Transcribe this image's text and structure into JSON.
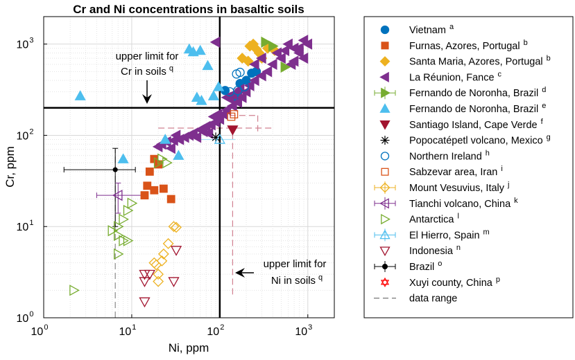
{
  "chart_data": {
    "type": "scatter",
    "title": "Cr and Ni concentrations in basaltic soils",
    "xlabel": "Ni, ppm",
    "ylabel": "Cr, ppm",
    "xscale": "log",
    "yscale": "log",
    "xlim": [
      1,
      2000
    ],
    "ylim": [
      1,
      2000
    ],
    "grid": true,
    "xticks": [
      {
        "value": 1,
        "base": "10",
        "exp": "0"
      },
      {
        "value": 10,
        "base": "10",
        "exp": "1"
      },
      {
        "value": 100,
        "base": "10",
        "exp": "2"
      },
      {
        "value": 1000,
        "base": "10",
        "exp": "3"
      }
    ],
    "yticks": [
      {
        "value": 1,
        "base": "10",
        "exp": "0"
      },
      {
        "value": 10,
        "base": "10",
        "exp": "1"
      },
      {
        "value": 100,
        "base": "10",
        "exp": "2"
      },
      {
        "value": 1000,
        "base": "10",
        "exp": "3"
      }
    ],
    "limits": {
      "cr_limit": 200,
      "ni_limit": 100
    },
    "annotations": {
      "cr": {
        "line1": "upper limit for",
        "line2": "Cr in soils",
        "sup": "q"
      },
      "ni": {
        "line1": "upper limit for",
        "line2": "Ni in soils",
        "sup": "q"
      }
    },
    "legend_position": "outside-right",
    "series": [
      {
        "name": "Vietnam",
        "sup": "a",
        "marker": "circle",
        "filled": true,
        "color": "#0072BD",
        "points": [
          [
            115,
            310
          ],
          [
            150,
            260
          ],
          [
            170,
            370
          ],
          [
            200,
            400
          ],
          [
            230,
            480
          ],
          [
            260,
            500
          ]
        ]
      },
      {
        "name": "Furnas, Azores, Portugal",
        "sup": "b",
        "marker": "square",
        "filled": true,
        "color": "#D95319",
        "points": [
          [
            18,
            55
          ],
          [
            20,
            48
          ],
          [
            16,
            40
          ],
          [
            15,
            28
          ],
          [
            18,
            25
          ],
          [
            23,
            26
          ],
          [
            28,
            20
          ],
          [
            14,
            22
          ]
        ]
      },
      {
        "name": "Santa Maria, Azores, Portugal",
        "sup": "b",
        "marker": "diamond",
        "filled": true,
        "color": "#EDB120",
        "points": [
          [
            220,
            950
          ],
          [
            240,
            1000
          ],
          [
            260,
            880
          ],
          [
            280,
            800
          ],
          [
            300,
            700
          ],
          [
            210,
            650
          ],
          [
            350,
            900
          ],
          [
            420,
            850
          ],
          [
            180,
            700
          ]
        ]
      },
      {
        "name": "La Réunion, Fance",
        "sup": "c",
        "marker": "triangle-left",
        "filled": true,
        "color": "#7E2F8E",
        "points": [
          [
            90,
            1050
          ],
          [
            600,
            1000
          ],
          [
            700,
            900
          ],
          [
            800,
            800
          ],
          [
            900,
            700
          ],
          [
            1000,
            1000
          ],
          [
            500,
            700
          ],
          [
            400,
            600
          ],
          [
            350,
            500
          ],
          [
            300,
            450
          ],
          [
            250,
            400
          ],
          [
            220,
            350
          ],
          [
            200,
            300
          ],
          [
            180,
            260
          ],
          [
            160,
            230
          ],
          [
            140,
            210
          ],
          [
            120,
            190
          ],
          [
            110,
            170
          ],
          [
            100,
            150
          ],
          [
            90,
            140
          ],
          [
            80,
            130
          ],
          [
            70,
            125
          ],
          [
            60,
            115
          ],
          [
            50,
            105
          ],
          [
            45,
            100
          ],
          [
            40,
            95
          ],
          [
            35,
            90
          ],
          [
            30,
            88
          ],
          [
            25,
            85
          ],
          [
            22,
            80
          ],
          [
            20,
            75
          ],
          [
            28,
            72
          ],
          [
            32,
            100
          ],
          [
            55,
            95
          ],
          [
            65,
            110
          ],
          [
            75,
            105
          ],
          [
            85,
            160
          ],
          [
            95,
            170
          ],
          [
            130,
            250
          ],
          [
            160,
            300
          ],
          [
            250,
            600
          ],
          [
            300,
            700
          ],
          [
            450,
            800
          ],
          [
            550,
            850
          ],
          [
            650,
            600
          ],
          [
            700,
            650
          ],
          [
            800,
            900
          ],
          [
            900,
            1100
          ],
          [
            120,
            260
          ],
          [
            140,
            280
          ],
          [
            170,
            320
          ]
        ]
      },
      {
        "name": "Fernando de Noronha, Brazil",
        "sup": "d",
        "marker": "triangle-right",
        "filled": true,
        "color": "#77AC30",
        "points": [
          [
            330,
            1050
          ],
          [
            400,
            950
          ],
          [
            550,
            560
          ]
        ]
      },
      {
        "name": "Fernando de Noronha, Brazil",
        "sup": "e",
        "marker": "triangle-up",
        "filled": true,
        "color": "#4DBEEE",
        "points": [
          [
            2.6,
            270
          ],
          [
            8,
            55
          ],
          [
            24,
            90
          ],
          [
            34,
            60
          ],
          [
            55,
            260
          ],
          [
            62,
            240
          ],
          [
            73,
            580
          ],
          [
            85,
            270
          ],
          [
            97,
            340
          ],
          [
            60,
            850
          ],
          [
            50,
            820
          ],
          [
            45,
            880
          ]
        ]
      },
      {
        "name": "Santiago Island, Cape Verde",
        "sup": "f",
        "marker": "triangle-down",
        "filled": true,
        "color": "#A2142F",
        "points": [
          [
            140,
            115
          ]
        ]
      },
      {
        "name": "Popocatépetl volcano, Mexico",
        "sup": "g",
        "marker": "asterisk",
        "filled": false,
        "color": "#000000",
        "points": [
          [
            90,
            95
          ]
        ]
      },
      {
        "name": "Northern Ireland",
        "sup": "h",
        "marker": "circle",
        "filled": false,
        "color": "#0072BD",
        "points": [
          [
            130,
            300
          ],
          [
            160,
            310
          ],
          [
            190,
            340
          ],
          [
            170,
            490
          ],
          [
            155,
            470
          ]
        ]
      },
      {
        "name": "Sabzevar area, Iran",
        "sup": "i",
        "marker": "square",
        "filled": false,
        "color": "#D95319",
        "points": [
          [
            135,
            160
          ],
          [
            145,
            170
          ]
        ]
      },
      {
        "name": "Mount Vesuvius, Italy",
        "sup": "j",
        "marker": "diamond",
        "filled": false,
        "color": "#EDB120",
        "points": [
          [
            20,
            2.5
          ],
          [
            20,
            3
          ],
          [
            19,
            3.8
          ],
          [
            22,
            4.2
          ],
          [
            23,
            5
          ],
          [
            26,
            6.5
          ],
          [
            30,
            10
          ],
          [
            32,
            9.8
          ],
          [
            18,
            4
          ]
        ]
      },
      {
        "name": "Tianchi volcano, China",
        "sup": "k",
        "marker": "triangle-left",
        "filled": false,
        "color": "#7E2F8E",
        "points": [
          [
            7,
            22
          ]
        ]
      },
      {
        "name": "Antarctica",
        "sup": "l",
        "marker": "triangle-right",
        "filled": false,
        "color": "#77AC30",
        "points": [
          [
            2.2,
            2
          ],
          [
            7,
            5
          ],
          [
            6,
            9
          ],
          [
            8,
            12
          ],
          [
            9,
            15
          ],
          [
            10,
            18
          ],
          [
            7,
            8
          ],
          [
            8,
            7
          ],
          [
            9,
            7
          ],
          [
            7,
            10
          ],
          [
            20,
            50
          ],
          [
            22,
            55
          ],
          [
            25,
            50
          ]
        ]
      },
      {
        "name": "El Hierro, Spain",
        "sup": "m",
        "marker": "triangle-up",
        "filled": false,
        "color": "#4DBEEE",
        "points": [
          [
            100,
            90
          ]
        ]
      },
      {
        "name": "Indonesia",
        "sup": "n",
        "marker": "triangle-down",
        "filled": false,
        "color": "#A2142F",
        "points": [
          [
            14,
            1.5
          ],
          [
            14,
            2.5
          ],
          [
            14,
            3
          ],
          [
            16,
            3
          ],
          [
            30,
            2.5
          ],
          [
            32,
            5.5
          ]
        ]
      },
      {
        "name": "Brazil",
        "sup": "o",
        "marker": "circle-errorbar",
        "filled": true,
        "color": "#000000",
        "points": [
          [
            6.5,
            42
          ]
        ]
      },
      {
        "name": "Xuyi county, China",
        "sup": "p",
        "marker": "hexagram",
        "filled": false,
        "color": "#FF0000",
        "points": []
      },
      {
        "name": "data range",
        "sup": "",
        "marker": "dashed-line",
        "filled": false,
        "color": "#777777",
        "points": []
      }
    ]
  }
}
